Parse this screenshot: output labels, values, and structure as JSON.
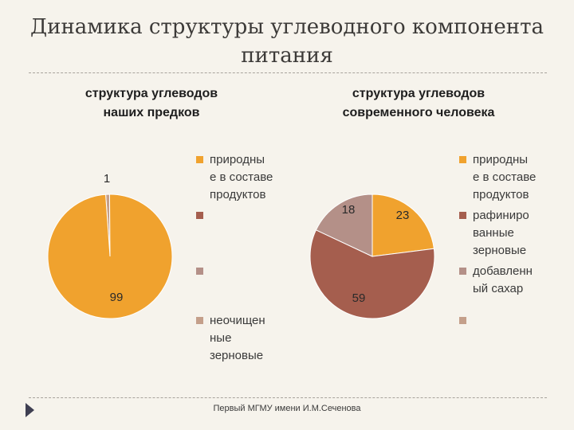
{
  "slide": {
    "title_line1": "Динамика структуры углеводного компонента",
    "title_line2": "питания",
    "footer": "Первый МГМУ имени И.М.Сеченова"
  },
  "chart_data": [
    {
      "type": "pie",
      "title_line1": "структура углеводов",
      "title_line2": "наших предков",
      "categories": [
        "природные в составе продуктов",
        "",
        "",
        "неочищенные зерновые"
      ],
      "legend_labels": [
        "природны\nе в составе\nпродуктов",
        "",
        "",
        "неочищен\nные\nзерновые"
      ],
      "values": [
        99,
        null,
        null,
        1
      ],
      "data_labels": [
        "99",
        "",
        "",
        "1"
      ],
      "colors": [
        "#f0a22e",
        "#a55e4e",
        "#b49088",
        "#c49f8a"
      ],
      "legend_position": "right"
    },
    {
      "type": "pie",
      "title_line1": "структура углеводов",
      "title_line2": "современного человека",
      "categories": [
        "природные в составе продуктов",
        "рафинированные зерновые",
        "добавленный сахар",
        ""
      ],
      "legend_labels": [
        "природны\nе в составе\nпродуктов",
        "рафиниро\nванные\nзерновые",
        "добавленн\nый сахар",
        ""
      ],
      "values": [
        23,
        59,
        18,
        null
      ],
      "data_labels": [
        "23",
        "59",
        "18",
        ""
      ],
      "colors": [
        "#f0a22e",
        "#a55e4e",
        "#b49088",
        "#c49f8a"
      ],
      "legend_position": "right"
    }
  ]
}
